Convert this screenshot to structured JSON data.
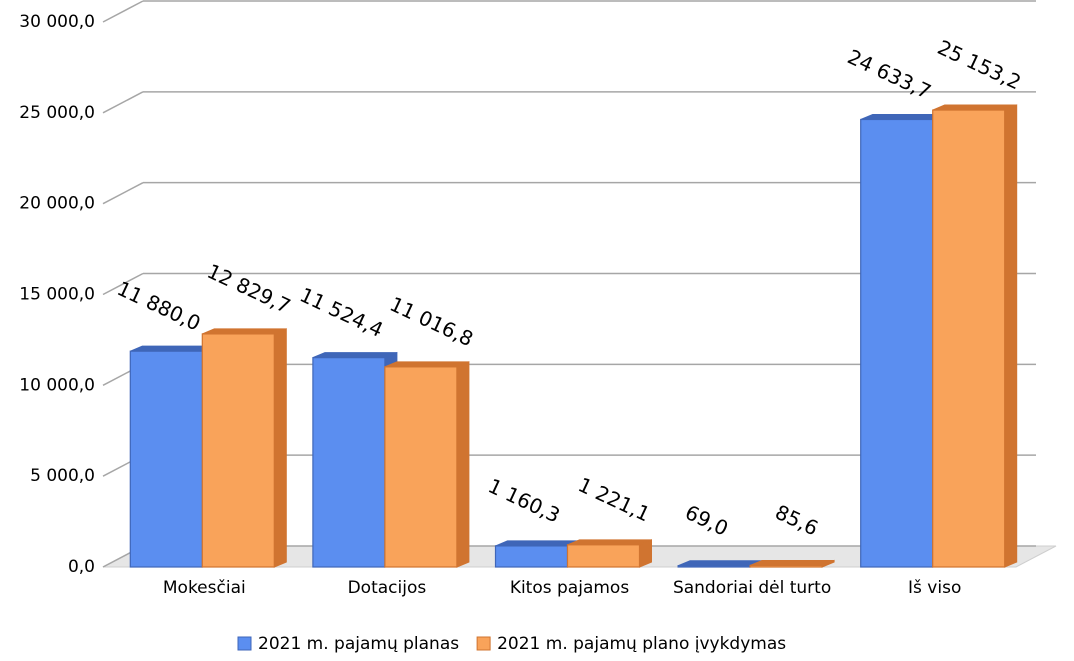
{
  "chart_data": {
    "type": "bar3d",
    "categories": [
      "Mokesčiai",
      "Dotacijos",
      "Kitos pajamos",
      "Sandoriai dėl turto",
      "Iš viso"
    ],
    "series": [
      {
        "name": "2021 m. pajamų planas",
        "color": "#5b8ef0",
        "side": "#3f66b8",
        "values": [
          11880.0,
          11524.4,
          1160.3,
          69.0,
          24633.7
        ],
        "value_labels": [
          "11 880,0",
          "11 524,4",
          "1 160,3",
          "69,0",
          "24 633,7"
        ]
      },
      {
        "name": "2021 m. pajamų plano įvykdymas",
        "color": "#f9a35a",
        "side": "#d07430",
        "values": [
          12829.7,
          11016.8,
          1221.1,
          85.6,
          25153.2
        ],
        "value_labels": [
          "12 829,7",
          "11 016,8",
          "1 221,1",
          "85,6",
          "25 153,2"
        ]
      }
    ],
    "ylim": [
      0,
      30000
    ],
    "yticks": [
      {
        "value": 0,
        "label": "0,0"
      },
      {
        "value": 5000,
        "label": "5 000,0"
      },
      {
        "value": 10000,
        "label": "10 000,0"
      },
      {
        "value": 15000,
        "label": "15 000,0"
      },
      {
        "value": 20000,
        "label": "20 000,0"
      },
      {
        "value": 25000,
        "label": "25 000,0"
      },
      {
        "value": 30000,
        "label": "30 000,0"
      }
    ],
    "grid": true,
    "legend": "bottom"
  }
}
